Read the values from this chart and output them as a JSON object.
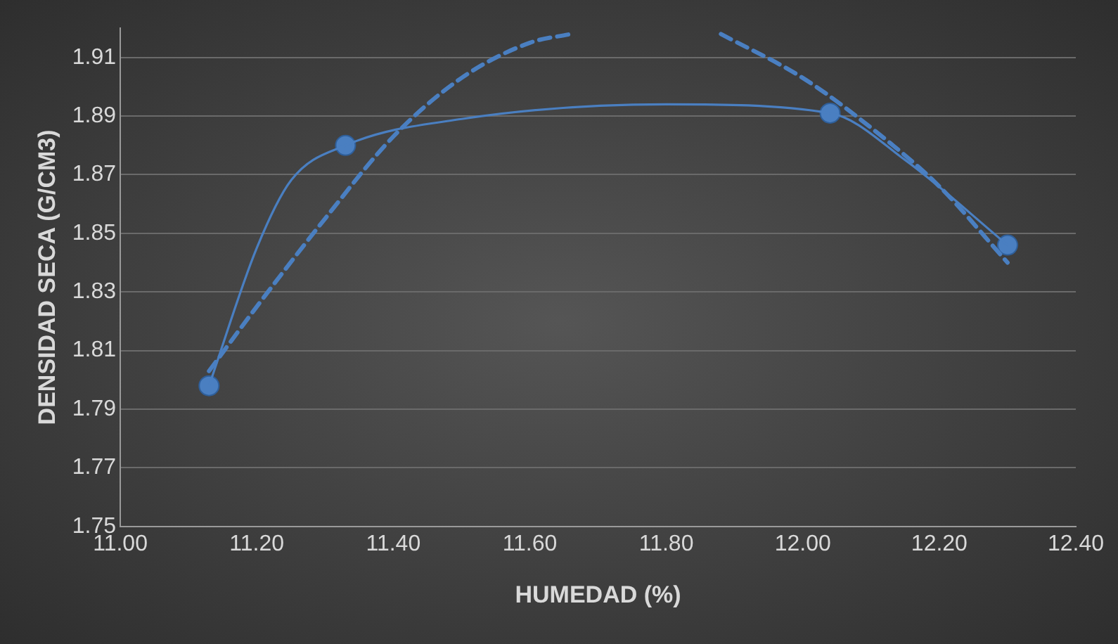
{
  "chart_data": {
    "type": "scatter",
    "xlabel": "HUMEDAD (%)",
    "ylabel": "DENSIDAD SECA (G/CM3)",
    "xlim": [
      11.0,
      12.4
    ],
    "ylim": [
      1.75,
      1.92
    ],
    "xticks": [
      {
        "value": 11.0,
        "label": "11.00"
      },
      {
        "value": 11.2,
        "label": "11.20"
      },
      {
        "value": 11.4,
        "label": "11.40"
      },
      {
        "value": 11.6,
        "label": "11.60"
      },
      {
        "value": 11.8,
        "label": "11.80"
      },
      {
        "value": 12.0,
        "label": "12.00"
      },
      {
        "value": 12.2,
        "label": "12.20"
      },
      {
        "value": 12.4,
        "label": "12.40"
      }
    ],
    "yticks": [
      1.75,
      1.77,
      1.79,
      1.81,
      1.83,
      1.85,
      1.87,
      1.89,
      1.91
    ],
    "grid": "y",
    "series": [
      {
        "type": "line",
        "color": "#4a7fc1",
        "marker": "none",
        "line_style": "solid",
        "x": [
          11.13,
          11.2,
          11.25,
          11.33,
          11.5,
          11.8,
          12.04,
          12.15,
          12.3
        ],
        "values": [
          1.798,
          1.845,
          1.868,
          1.88,
          1.889,
          1.894,
          1.891,
          1.875,
          1.846
        ]
      },
      {
        "type": "line",
        "color": "#4a7fc1",
        "marker": "none",
        "line_style": "dashed",
        "x": [
          11.13,
          11.2,
          11.3,
          11.4,
          11.5,
          11.6,
          11.66,
          11.77,
          11.88,
          12.0,
          12.1,
          12.2,
          12.3
        ],
        "values": [
          1.803,
          1.825,
          1.855,
          1.883,
          1.903,
          1.915,
          1.918,
          null,
          1.918,
          1.903,
          1.886,
          1.866,
          1.84
        ]
      },
      {
        "type": "scatter",
        "color": "#4a7fc1",
        "marker": "circle",
        "x": [
          11.13,
          11.33,
          12.04,
          12.3
        ],
        "values": [
          1.798,
          1.88,
          1.891,
          1.846
        ]
      }
    ]
  }
}
